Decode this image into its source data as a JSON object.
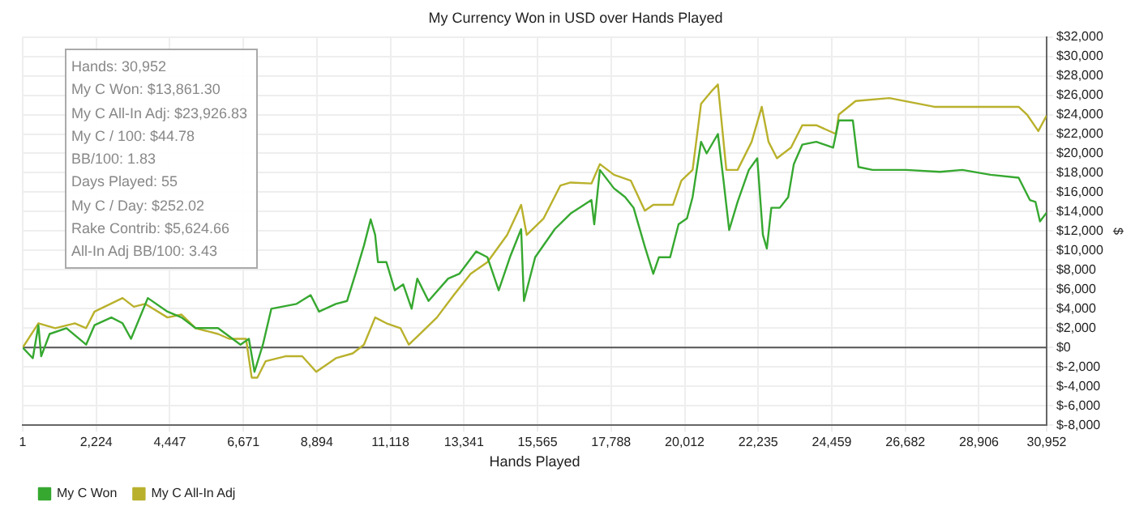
{
  "chart_data": {
    "type": "line",
    "title": "My Currency Won in USD over Hands Played",
    "xlabel": "Hands Played",
    "ylabel": "$",
    "annotations": [
      "Hands: 30,952",
      "My C Won: $13,861.30",
      "My C All-In Adj: $23,926.83",
      "My C / 100: $44.78",
      "BB/100: 1.83",
      "Days Played: 55",
      "My C / Day: $252.02",
      "Rake Contrib: $5,624.66",
      "All-In Adj BB/100: 3.43"
    ],
    "xlim": [
      1,
      30952
    ],
    "xticks": [
      1,
      {
        "value": 2224,
        "label": "2,224"
      },
      {
        "value": 4447,
        "label": "4,447"
      },
      {
        "value": 6671,
        "label": "6,671"
      },
      {
        "value": 8894,
        "label": "8,894"
      },
      {
        "value": 11118,
        "label": "11,118"
      },
      {
        "value": 13341,
        "label": "13,341"
      },
      {
        "value": 15565,
        "label": "15,565"
      },
      {
        "value": 17788,
        "label": "17,788"
      },
      {
        "value": 20012,
        "label": "20,012"
      },
      {
        "value": 22235,
        "label": "22,235"
      },
      {
        "value": 24459,
        "label": "24,459"
      },
      {
        "value": 26682,
        "label": "26,682"
      },
      {
        "value": 28906,
        "label": "28,906"
      },
      {
        "value": 30952,
        "label": "30,952"
      }
    ],
    "ylim": [
      -8000,
      32000
    ],
    "yticks": [
      {
        "value": -8000,
        "label": "$-8,000"
      },
      {
        "value": -6000,
        "label": "$-6,000"
      },
      {
        "value": -4000,
        "label": "$-4,000"
      },
      {
        "value": -2000,
        "label": "$-2,000"
      },
      {
        "value": 0,
        "label": "$0"
      },
      {
        "value": 2000,
        "label": "$2,000"
      },
      {
        "value": 4000,
        "label": "$4,000"
      },
      {
        "value": 6000,
        "label": "$6,000"
      },
      {
        "value": 8000,
        "label": "$8,000"
      },
      {
        "value": 10000,
        "label": "$10,000"
      },
      {
        "value": 12000,
        "label": "$12,000"
      },
      {
        "value": 14000,
        "label": "$14,000"
      },
      {
        "value": 16000,
        "label": "$16,000"
      },
      {
        "value": 18000,
        "label": "$18,000"
      },
      {
        "value": 20000,
        "label": "$20,000"
      },
      {
        "value": 22000,
        "label": "$22,000"
      },
      {
        "value": 24000,
        "label": "$24,000"
      },
      {
        "value": 26000,
        "label": "$26,000"
      },
      {
        "value": 28000,
        "label": "$28,000"
      },
      {
        "value": 30000,
        "label": "$30,000"
      },
      {
        "value": 32000,
        "label": "$32,000"
      }
    ],
    "grid": true,
    "legend": "bottom left",
    "marker": "none",
    "line_style": "solid",
    "ref_lines": [
      {
        "axis": "y",
        "value": 0,
        "color": "#555555"
      }
    ],
    "series": [
      {
        "name": "My C Won",
        "color": "#36a830",
        "x": [
          1,
          306,
          476,
          560,
          815,
          1324,
          1918,
          2172,
          2681,
          3020,
          3275,
          3784,
          4378,
          4802,
          5226,
          5905,
          6584,
          6838,
          7008,
          7262,
          7517,
          8280,
          8705,
          8959,
          9468,
          9807,
          10062,
          10316,
          10520,
          10655,
          10740,
          10995,
          11250,
          11504,
          11758,
          11928,
          12268,
          12862,
          13200,
          13710,
          14050,
          14390,
          14729,
          15068,
          15153,
          15492,
          16086,
          16561,
          17193,
          17278,
          17448,
          17873,
          18213,
          18467,
          18807,
          19062,
          19232,
          19572,
          19827,
          20081,
          20251,
          20506,
          20676,
          21016,
          21186,
          21356,
          21611,
          21951,
          22206,
          22376,
          22495,
          22631,
          22886,
          23141,
          23311,
          23566,
          23990,
          24500,
          24670,
          25095,
          25265,
          25690,
          26707,
          27727,
          28407,
          29256,
          30106,
          30446,
          30616,
          30752,
          30952
        ],
        "values": [
          0,
          -1100,
          2300,
          -900,
          1400,
          2000,
          300,
          2300,
          3100,
          2500,
          900,
          5100,
          3700,
          3100,
          2000,
          2000,
          300,
          900,
          -2500,
          300,
          4000,
          4500,
          5400,
          3700,
          4500,
          4800,
          7600,
          10500,
          13200,
          11600,
          8800,
          8800,
          5900,
          6500,
          4000,
          7100,
          4800,
          7100,
          7600,
          9900,
          9300,
          5900,
          9300,
          12200,
          4800,
          9300,
          12200,
          13800,
          15200,
          12700,
          18300,
          16400,
          15500,
          14400,
          10400,
          7600,
          9300,
          9300,
          12700,
          13300,
          15500,
          21200,
          20000,
          22000,
          17200,
          12100,
          15000,
          18300,
          19500,
          11600,
          10200,
          14400,
          14400,
          15500,
          18900,
          20900,
          21200,
          20600,
          23400,
          23400,
          18600,
          18300,
          18300,
          18100,
          18300,
          17800,
          17500,
          15200,
          15000,
          13000,
          13900
        ]
      },
      {
        "name": "My C All-In Adj",
        "color": "#b9b12c",
        "x": [
          1,
          476,
          985,
          1578,
          1918,
          2172,
          3020,
          3360,
          3700,
          4378,
          4802,
          5226,
          5905,
          6244,
          6753,
          6923,
          7093,
          7347,
          7941,
          8450,
          8874,
          9468,
          9977,
          10316,
          10655,
          10995,
          11419,
          11673,
          12013,
          12522,
          13031,
          13540,
          14050,
          14644,
          15068,
          15238,
          15747,
          16256,
          16561,
          17193,
          17448,
          17873,
          18382,
          18807,
          19062,
          19657,
          19912,
          20251,
          20506,
          20846,
          21016,
          21271,
          21611,
          22036,
          22342,
          22546,
          22801,
          23226,
          23566,
          23990,
          24585,
          24670,
          25180,
          26199,
          27557,
          28407,
          30106,
          30361,
          30701,
          30952
        ],
        "values": [
          0,
          2500,
          2000,
          2500,
          2000,
          3700,
          5100,
          4200,
          4500,
          3100,
          3400,
          2000,
          1400,
          900,
          900,
          -3100,
          -3100,
          -1400,
          -900,
          -900,
          -2500,
          -1100,
          -600,
          300,
          3100,
          2500,
          2000,
          300,
          1400,
          3100,
          5400,
          7600,
          8800,
          11600,
          14700,
          11600,
          13300,
          16700,
          17000,
          16900,
          18900,
          17800,
          17200,
          14100,
          14700,
          14700,
          17200,
          18300,
          25100,
          26500,
          27100,
          18300,
          18300,
          21200,
          24800,
          21200,
          19500,
          20600,
          22900,
          22900,
          22000,
          24000,
          25400,
          25700,
          24800,
          24800,
          24800,
          24000,
          22300,
          23900
        ]
      }
    ]
  }
}
